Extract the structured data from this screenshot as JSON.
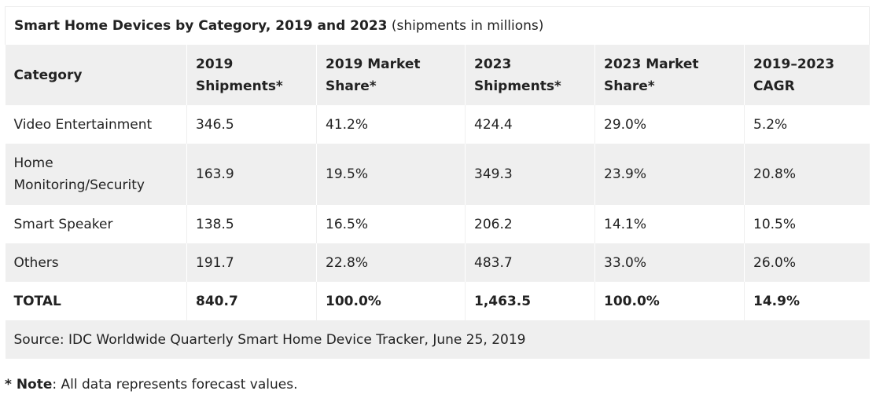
{
  "caption": {
    "title": "Smart Home Devices by Category, 2019 and 2023",
    "subtitle": "(shipments in millions)"
  },
  "columns": [
    [
      "Category"
    ],
    [
      "2019",
      "Shipments*"
    ],
    [
      "2019 Market",
      "Share*"
    ],
    [
      "2023",
      "Shipments*"
    ],
    [
      "2023 Market",
      "Share*"
    ],
    [
      "2019–2023",
      "CAGR"
    ]
  ],
  "rows": [
    {
      "category": [
        "Video Entertainment"
      ],
      "s2019": "346.5",
      "m2019": "41.2%",
      "s2023": "424.4",
      "m2023": "29.0%",
      "cagr": "5.2%"
    },
    {
      "category": [
        "Home",
        "Monitoring/Security"
      ],
      "s2019": "163.9",
      "m2019": "19.5%",
      "s2023": "349.3",
      "m2023": "23.9%",
      "cagr": "20.8%"
    },
    {
      "category": [
        "Smart Speaker"
      ],
      "s2019": "138.5",
      "m2019": "16.5%",
      "s2023": "206.2",
      "m2023": "14.1%",
      "cagr": "10.5%"
    },
    {
      "category": [
        "Others"
      ],
      "s2019": "191.7",
      "m2019": "22.8%",
      "s2023": "483.7",
      "m2023": "33.0%",
      "cagr": "26.0%"
    },
    {
      "category": [
        "TOTAL"
      ],
      "s2019": "840.7",
      "m2019": "100.0%",
      "s2023": "1,463.5",
      "m2023": "100.0%",
      "cagr": "14.9%"
    }
  ],
  "source": "Source: IDC Worldwide Quarterly Smart Home Device Tracker, June 25, 2019",
  "note": {
    "star": "* ",
    "label": "Note",
    "text": ": All data represents forecast values."
  }
}
